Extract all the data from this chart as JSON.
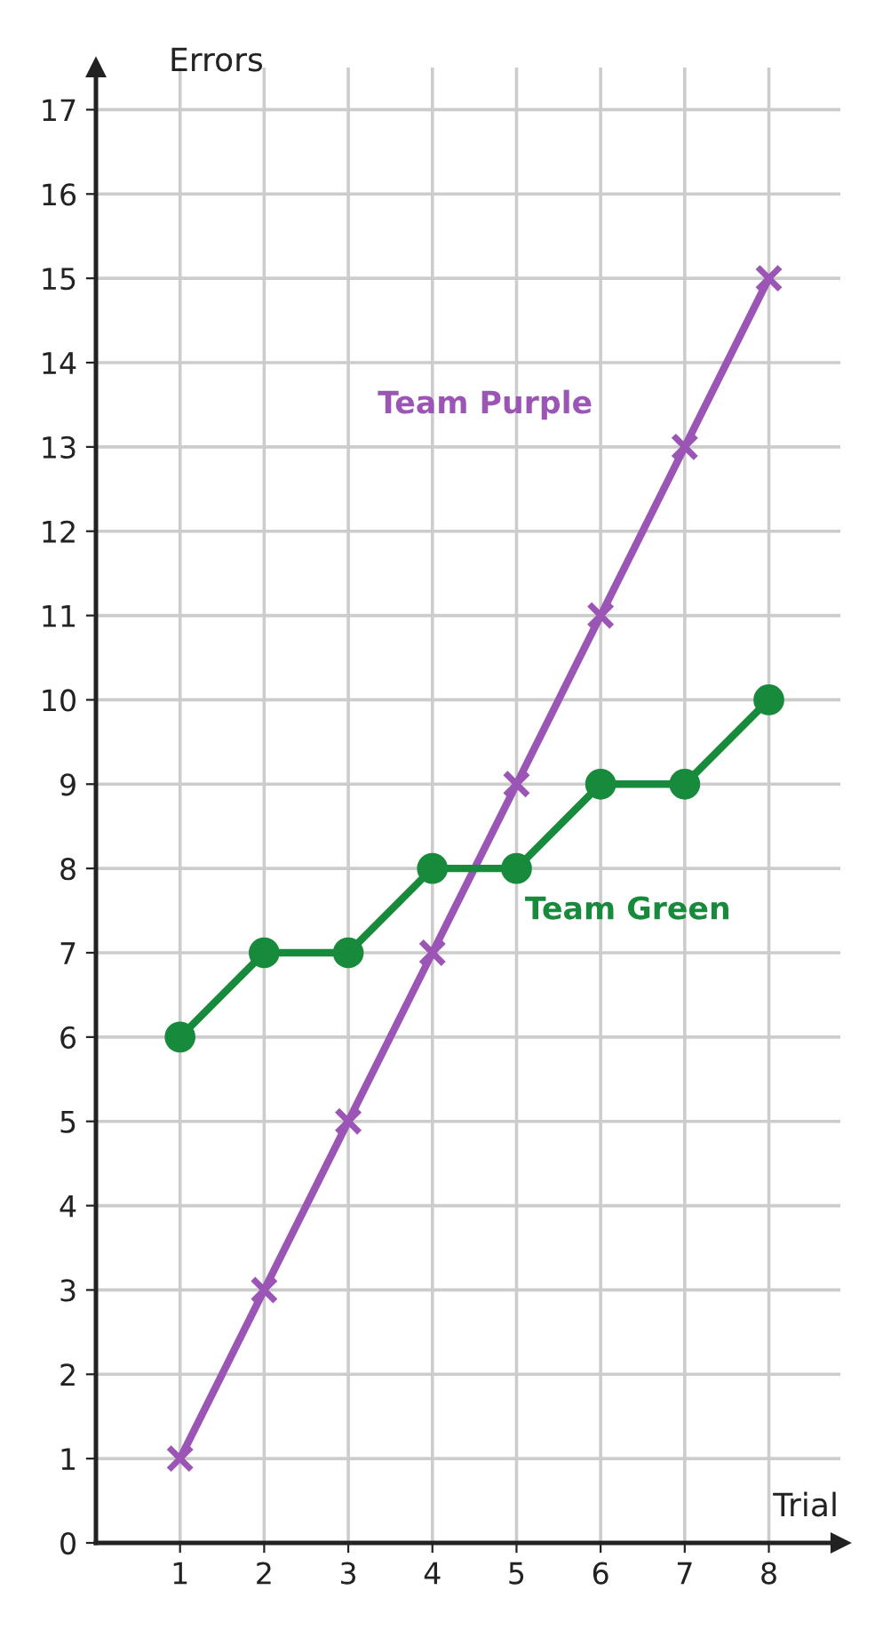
{
  "chart_data": {
    "type": "line",
    "xlabel": "Trial",
    "ylabel": "Errors",
    "x": [
      1,
      2,
      3,
      4,
      5,
      6,
      7,
      8
    ],
    "series": [
      {
        "name": "Team Purple",
        "color": "#9b55b5",
        "marker": "cross",
        "values": [
          1,
          3,
          5,
          7,
          9,
          11,
          13,
          15
        ]
      },
      {
        "name": "Team Green",
        "color": "#178a3c",
        "marker": "circle",
        "values": [
          6,
          7,
          7,
          8,
          8,
          9,
          9,
          10
        ]
      }
    ],
    "xlim": [
      0,
      8.85
    ],
    "ylim": [
      0,
      17.5
    ],
    "xticks": [
      1,
      2,
      3,
      4,
      5,
      6,
      7,
      8
    ],
    "yticks": [
      0,
      1,
      2,
      3,
      4,
      5,
      6,
      7,
      8,
      9,
      10,
      11,
      12,
      13,
      14,
      15,
      16,
      17
    ],
    "grid": true,
    "line_style": "solid",
    "legend": false
  }
}
